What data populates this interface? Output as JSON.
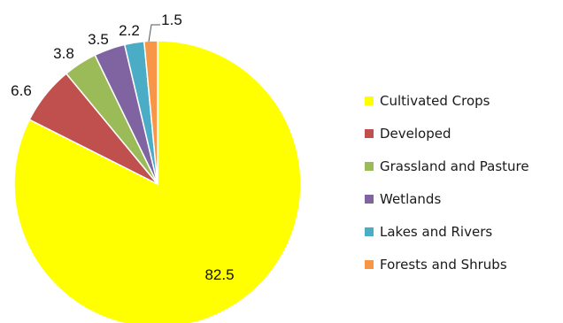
{
  "chart_data": {
    "type": "pie",
    "title": "",
    "legend_position": "right",
    "start_angle_deg": 0,
    "direction": "clockwise",
    "slices": [
      {
        "label": "Cultivated Crops",
        "value": 82.5,
        "value_label": "82.5",
        "color": "#FFFF00"
      },
      {
        "label": "Developed",
        "value": 6.6,
        "value_label": "6.6",
        "color": "#C0504D"
      },
      {
        "label": "Grassland and Pasture",
        "value": 3.8,
        "value_label": "3.8",
        "color": "#9BBB59"
      },
      {
        "label": "Wetlands",
        "value": 3.5,
        "value_label": "3.5",
        "color": "#8064A2"
      },
      {
        "label": "Lakes and Rivers",
        "value": 2.2,
        "value_label": "2.2",
        "color": "#4BACC6"
      },
      {
        "label": "Forests and Shrubs",
        "value": 1.5,
        "value_label": "1.5",
        "color": "#F79646"
      }
    ]
  }
}
